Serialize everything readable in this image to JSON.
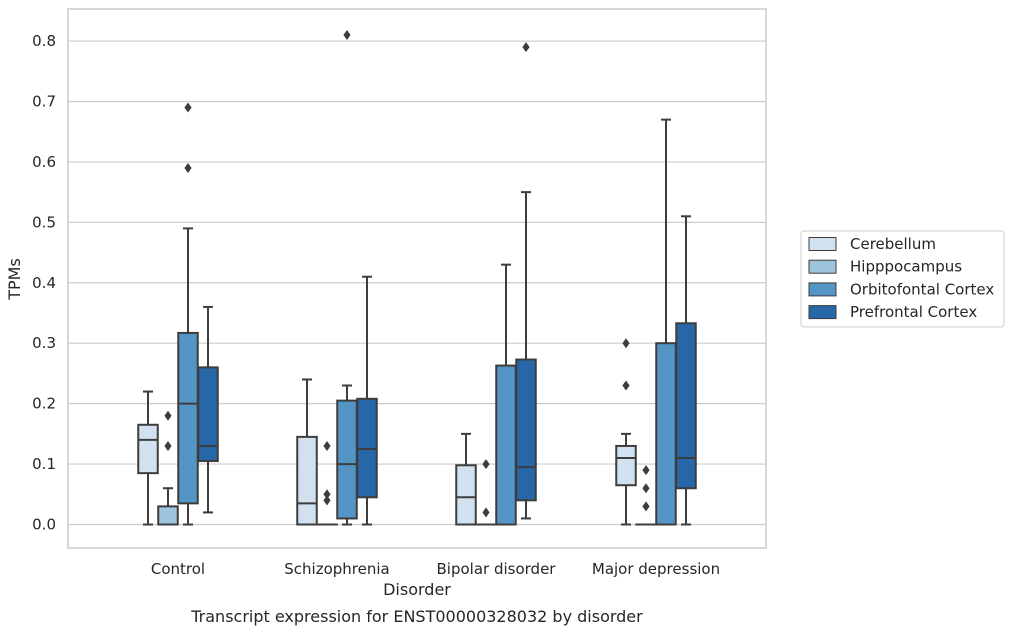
{
  "chart_data": {
    "type": "box",
    "title": "Transcript expression for ENST00000328032 by disorder",
    "xlabel": "Disorder",
    "ylabel": "TPMs",
    "ylim": [
      -0.04,
      0.855
    ],
    "yticks": [
      0.0,
      0.1,
      0.2,
      0.3,
      0.4,
      0.5,
      0.6,
      0.7,
      0.8
    ],
    "ytick_labels": [
      "0.0",
      "0.1",
      "0.2",
      "0.3",
      "0.4",
      "0.5",
      "0.6",
      "0.7",
      "0.8"
    ],
    "grid": "horizontal",
    "legend_position": "right",
    "categories": [
      "Control",
      "Schizophrenia",
      "Bipolar disorder",
      "Major depression"
    ],
    "series": [
      {
        "name": "Cerebellum",
        "color": "#d2e1f0",
        "boxes": [
          {
            "whislo": 0.0,
            "q1": 0.085,
            "med": 0.14,
            "q3": 0.165,
            "whishi": 0.22,
            "fliers": []
          },
          {
            "whislo": 0.0,
            "q1": 0.0,
            "med": 0.035,
            "q3": 0.145,
            "whishi": 0.24,
            "fliers": []
          },
          {
            "whislo": 0.0,
            "q1": 0.0,
            "med": 0.045,
            "q3": 0.098,
            "whishi": 0.15,
            "fliers": []
          },
          {
            "whislo": 0.0,
            "q1": 0.065,
            "med": 0.11,
            "q3": 0.13,
            "whishi": 0.15,
            "fliers": [
              0.23,
              0.3
            ]
          }
        ]
      },
      {
        "name": "Hipppocampus",
        "color": "#9dc3de",
        "boxes": [
          {
            "whislo": 0.0,
            "q1": 0.0,
            "med": 0.0,
            "q3": 0.03,
            "whishi": 0.06,
            "fliers": [
              0.13,
              0.18
            ]
          },
          {
            "whislo": 0.0,
            "q1": 0.0,
            "med": 0.0,
            "q3": 0.0,
            "whishi": 0.0,
            "fliers": [
              0.04,
              0.05,
              0.13
            ]
          },
          {
            "whislo": 0.0,
            "q1": 0.0,
            "med": 0.0,
            "q3": 0.0,
            "whishi": 0.0,
            "fliers": [
              0.02,
              0.1
            ]
          },
          {
            "whislo": 0.0,
            "q1": 0.0,
            "med": 0.0,
            "q3": 0.0,
            "whishi": 0.0,
            "fliers": [
              0.03,
              0.06,
              0.09
            ]
          }
        ]
      },
      {
        "name": "Orbitofontal Cortex",
        "color": "#5396c6",
        "boxes": [
          {
            "whislo": 0.0,
            "q1": 0.035,
            "med": 0.2,
            "q3": 0.317,
            "whishi": 0.49,
            "fliers": [
              0.59,
              0.69
            ]
          },
          {
            "whislo": 0.0,
            "q1": 0.01,
            "med": 0.1,
            "q3": 0.205,
            "whishi": 0.23,
            "fliers": [
              0.81
            ]
          },
          {
            "whislo": 0.0,
            "q1": 0.0,
            "med": 0.0,
            "q3": 0.263,
            "whishi": 0.43,
            "fliers": []
          },
          {
            "whislo": 0.0,
            "q1": 0.0,
            "med": 0.0,
            "q3": 0.3,
            "whishi": 0.67,
            "fliers": []
          }
        ]
      },
      {
        "name": "Prefrontal Cortex",
        "color": "#2767a8",
        "boxes": [
          {
            "whislo": 0.02,
            "q1": 0.105,
            "med": 0.13,
            "q3": 0.26,
            "whishi": 0.36,
            "fliers": []
          },
          {
            "whislo": 0.0,
            "q1": 0.045,
            "med": 0.125,
            "q3": 0.208,
            "whishi": 0.41,
            "fliers": []
          },
          {
            "whislo": 0.01,
            "q1": 0.04,
            "med": 0.095,
            "q3": 0.273,
            "whishi": 0.55,
            "fliers": [
              0.79
            ]
          },
          {
            "whislo": 0.0,
            "q1": 0.06,
            "med": 0.11,
            "q3": 0.333,
            "whishi": 0.51,
            "fliers": []
          }
        ]
      }
    ]
  }
}
